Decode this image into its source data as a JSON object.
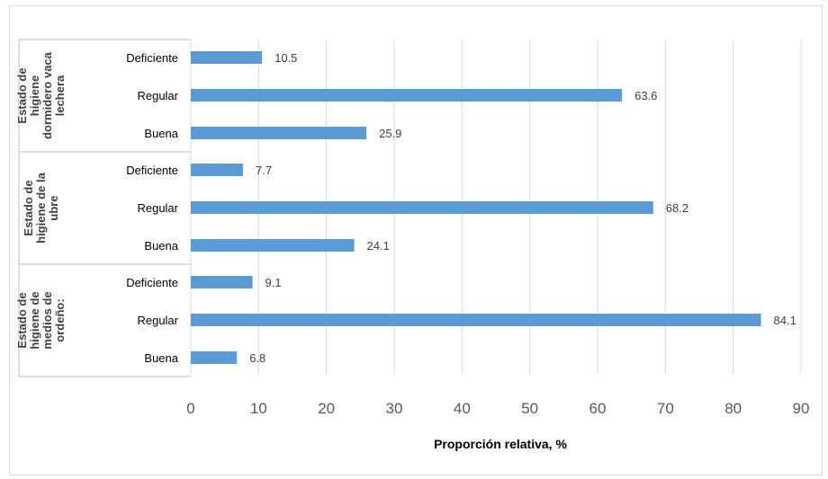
{
  "chart_data": {
    "type": "bar",
    "orientation": "horizontal",
    "xlabel": "Proporción relativa, %",
    "xlim": [
      0,
      90
    ],
    "xticks": [
      0,
      10,
      20,
      30,
      40,
      50,
      60,
      70,
      80,
      90
    ],
    "grid": "vertical",
    "bar_color": "#5b9bd5",
    "groups": [
      {
        "label_lines": [
          "Estado de",
          "higiene",
          "dormidero vaca",
          "lechera"
        ],
        "categories": [
          "Deficiente",
          "Regular",
          "Buena"
        ],
        "values": [
          10.5,
          63.6,
          25.9
        ],
        "value_labels": [
          "10.5",
          "63.6",
          "25.9"
        ]
      },
      {
        "label_lines": [
          "Estado de",
          "higiene de la",
          "ubre"
        ],
        "categories": [
          "Deficiente",
          "Regular",
          "Buena"
        ],
        "values": [
          7.7,
          68.2,
          24.1
        ],
        "value_labels": [
          "7.7",
          "68.2",
          "24.1"
        ]
      },
      {
        "label_lines": [
          "Estado de",
          "higiene de",
          "medios de",
          "ordeño:"
        ],
        "categories": [
          "Deficiente",
          "Regular",
          "Buena"
        ],
        "values": [
          9.1,
          84.1,
          6.8
        ],
        "value_labels": [
          "9.1",
          "84.1",
          "6.8"
        ]
      }
    ]
  }
}
